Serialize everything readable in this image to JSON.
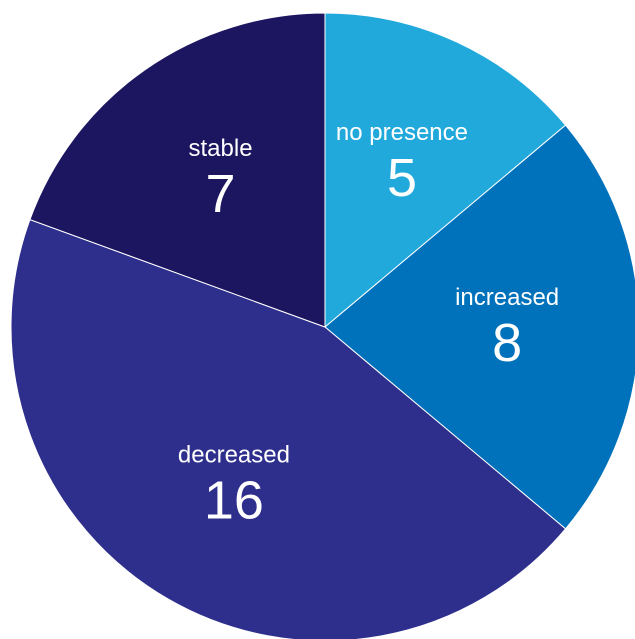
{
  "chart_data": {
    "type": "pie",
    "title": "",
    "slices": [
      {
        "label": "no presence",
        "value": 5,
        "color": "#22A9DC"
      },
      {
        "label": "increased",
        "value": 8,
        "color": "#0071BB"
      },
      {
        "label": "decreased",
        "value": 16,
        "color": "#2E2F8D"
      },
      {
        "label": "stable",
        "value": 7,
        "color": "#1C1560"
      }
    ],
    "start_angle_deg": 0,
    "direction": "clockwise"
  }
}
